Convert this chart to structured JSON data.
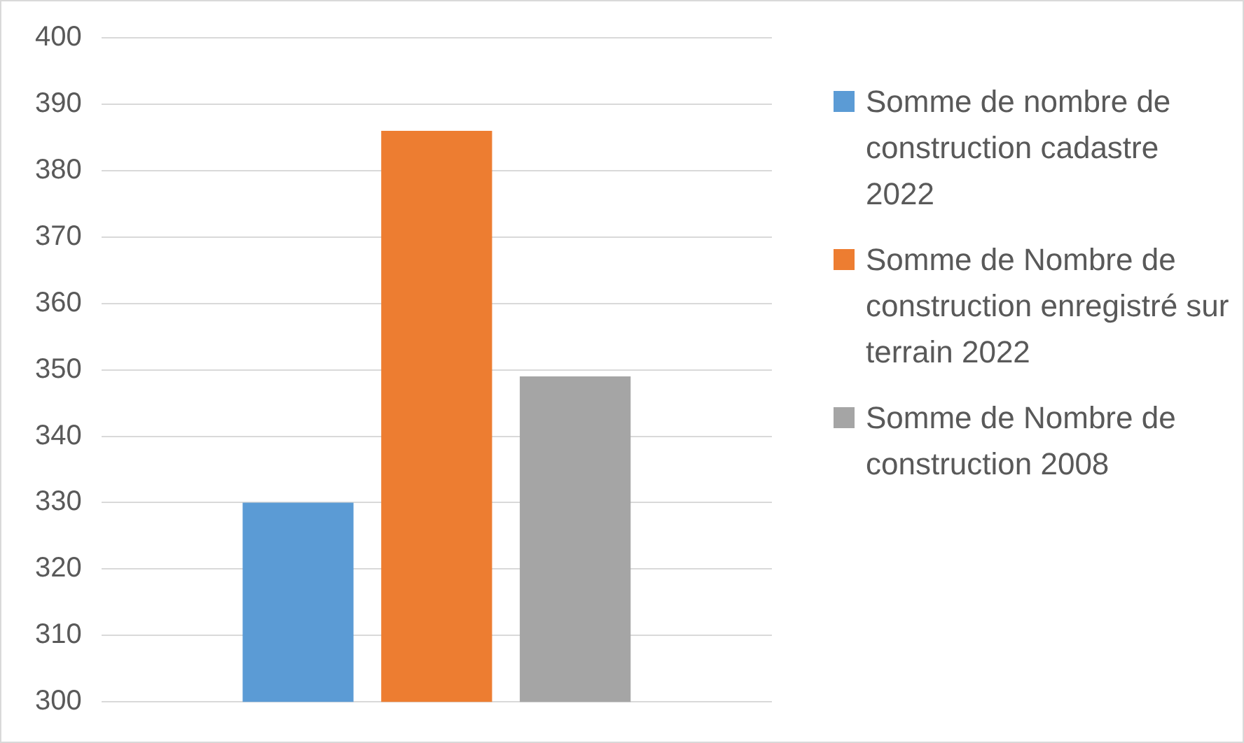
{
  "chart_data": {
    "type": "bar",
    "categories": [
      null
    ],
    "series": [
      {
        "name": "Somme de nombre de construction cadastre 2022",
        "color": "#5b9bd5",
        "values": [
          330
        ]
      },
      {
        "name": "Somme de Nombre de construction enregistré sur terrain 2022",
        "color": "#ed7d31",
        "values": [
          386
        ]
      },
      {
        "name": "Somme de Nombre de construction 2008",
        "color": "#a5a5a5",
        "values": [
          349
        ]
      }
    ],
    "ylim": [
      300,
      400
    ],
    "yticks": [
      300,
      310,
      320,
      330,
      340,
      350,
      360,
      370,
      380,
      390,
      400
    ],
    "grid": "y",
    "legend": "right"
  }
}
